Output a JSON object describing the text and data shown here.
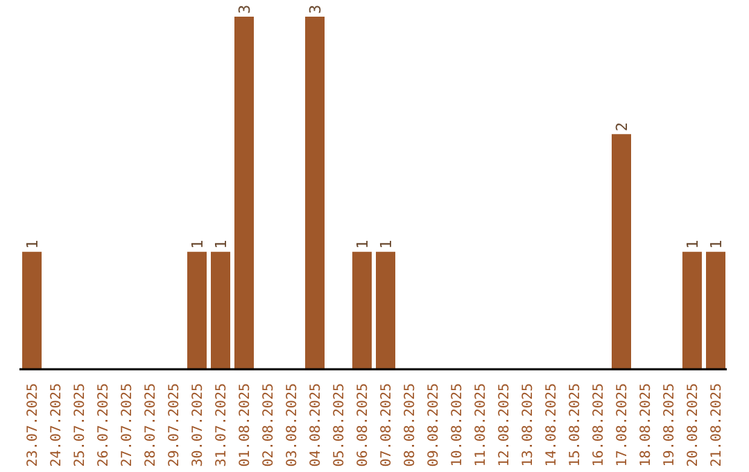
{
  "chart_data": {
    "type": "bar",
    "categories": [
      "23.07.2025",
      "24.07.2025",
      "25.07.2025",
      "26.07.2025",
      "27.07.2025",
      "28.07.2025",
      "29.07.2025",
      "30.07.2025",
      "31.07.2025",
      "01.08.2025",
      "02.08.2025",
      "03.08.2025",
      "04.08.2025",
      "05.08.2025",
      "06.08.2025",
      "07.08.2025",
      "08.08.2025",
      "09.08.2025",
      "10.08.2025",
      "11.08.2025",
      "12.08.2025",
      "13.08.2025",
      "14.08.2025",
      "15.08.2025",
      "16.08.2025",
      "17.08.2025",
      "18.08.2025",
      "19.08.2025",
      "20.08.2025",
      "21.08.2025"
    ],
    "values": [
      1,
      0,
      0,
      0,
      0,
      0,
      0,
      1,
      1,
      3,
      0,
      0,
      3,
      0,
      1,
      1,
      0,
      0,
      0,
      0,
      0,
      0,
      0,
      0,
      0,
      2,
      0,
      0,
      1,
      1
    ],
    "value_labels": [
      "1",
      null,
      null,
      null,
      null,
      null,
      null,
      "1",
      "1",
      "3",
      null,
      null,
      "3",
      null,
      "1",
      "1",
      null,
      null,
      null,
      null,
      null,
      null,
      null,
      null,
      null,
      "2",
      null,
      null,
      "1",
      "1"
    ],
    "color": "#a0582a",
    "grid": false,
    "tick_labels": "x"
  }
}
